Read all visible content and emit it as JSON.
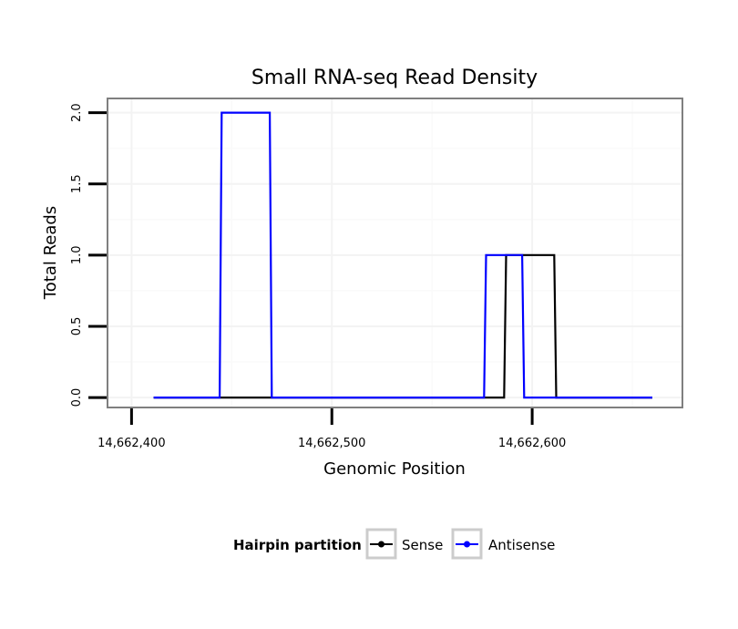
{
  "chart_data": {
    "type": "line",
    "title": "Small RNA-seq Read Density",
    "xlabel": "Genomic Position",
    "ylabel": "Total Reads",
    "xlim": [
      14662388,
      14662675
    ],
    "ylim": [
      -0.07,
      2.1
    ],
    "x_ticks": [
      14662400,
      14662500,
      14662600
    ],
    "x_tick_labels": [
      "14,662,400",
      "14,662,500",
      "14,662,600"
    ],
    "y_ticks": [
      0,
      0.5,
      1,
      1.5,
      2
    ],
    "y_tick_labels": [
      "0.0",
      "0.5",
      "1.0",
      "1.5",
      "2.0"
    ],
    "grid": true,
    "legend": {
      "title": "Hairpin partition",
      "position": "bottom",
      "entries": [
        "Sense",
        "Antisense"
      ]
    },
    "series": [
      {
        "name": "Sense",
        "color": "#000000",
        "points": [
          [
            14662411,
            0
          ],
          [
            14662586,
            0
          ],
          [
            14662587,
            1
          ],
          [
            14662611,
            1
          ],
          [
            14662612,
            0
          ],
          [
            14662660,
            0
          ]
        ]
      },
      {
        "name": "Antisense",
        "color": "#0000ff",
        "points": [
          [
            14662411,
            0
          ],
          [
            14662444,
            0
          ],
          [
            14662445,
            2
          ],
          [
            14662469,
            2
          ],
          [
            14662470,
            0
          ],
          [
            14662576,
            0
          ],
          [
            14662577,
            1
          ],
          [
            14662595,
            1
          ],
          [
            14662596,
            0
          ],
          [
            14662660,
            0
          ]
        ]
      }
    ]
  }
}
